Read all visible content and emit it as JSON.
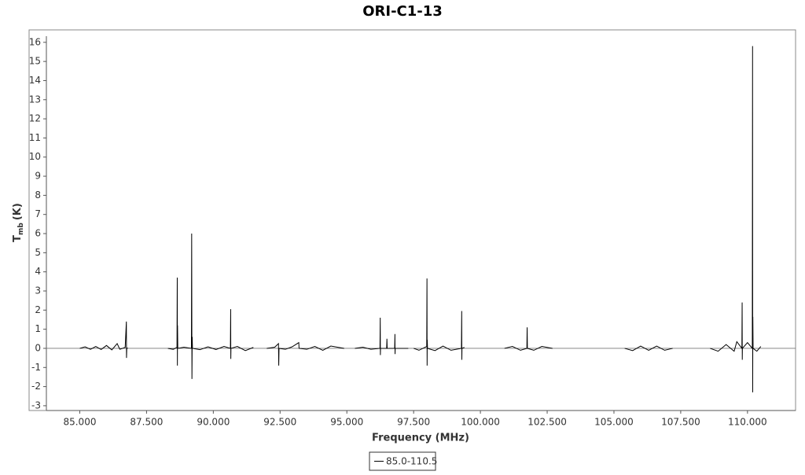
{
  "chart_data": {
    "type": "line",
    "title": "ORI-C1-13",
    "xlabel": "Frequency (MHz)",
    "ylabel": "T",
    "ylabel_sub": "mb",
    "ylabel_unit": "(K)",
    "xlim": [
      83.75,
      111.8
    ],
    "ylim": [
      -3.25,
      16.65
    ],
    "xticks": [
      {
        "value": 85,
        "label": "85.000"
      },
      {
        "value": 87.5,
        "label": "87.500"
      },
      {
        "value": 90,
        "label": "90.000"
      },
      {
        "value": 92.5,
        "label": "92.500"
      },
      {
        "value": 95,
        "label": "95.000"
      },
      {
        "value": 97.5,
        "label": "97.500"
      },
      {
        "value": 100,
        "label": "100.000"
      },
      {
        "value": 102.5,
        "label": "102.500"
      },
      {
        "value": 105,
        "label": "105.000"
      },
      {
        "value": 107.5,
        "label": "107.500"
      },
      {
        "value": 110,
        "label": "110.000"
      }
    ],
    "yticks": [
      -3,
      -2,
      -1,
      0,
      1,
      2,
      3,
      4,
      5,
      6,
      7,
      8,
      9,
      10,
      11,
      12,
      13,
      14,
      15,
      16
    ],
    "grid": false,
    "legend": "bottom",
    "x": [
      85.0,
      85.2,
      85.4,
      85.6,
      85.8,
      86.0,
      86.2,
      86.4,
      86.5,
      86.7,
      86.745,
      86.75,
      86.76,
      86.8,
      null,
      88.3,
      88.5,
      88.64,
      88.65,
      88.655,
      88.66,
      88.67,
      88.9,
      89.18,
      89.19,
      89.2,
      89.21,
      89.22,
      89.5,
      89.8,
      90.1,
      90.4,
      90.64,
      90.65,
      90.655,
      90.66,
      90.9,
      91.2,
      91.5,
      null,
      92.0,
      92.3,
      92.44,
      92.45,
      92.46,
      92.7,
      92.95,
      93.2,
      93.21,
      93.5,
      93.8,
      94.1,
      94.4,
      94.9,
      null,
      95.3,
      95.6,
      95.9,
      96.24,
      96.25,
      96.255,
      96.26,
      96.49,
      96.5,
      96.51,
      96.79,
      96.8,
      96.805,
      96.81,
      97.3,
      null,
      97.5,
      97.7,
      97.99,
      98.0,
      98.005,
      98.01,
      98.02,
      98.3,
      98.6,
      98.9,
      99.29,
      99.3,
      99.305,
      99.31,
      99.4,
      null,
      100.9,
      101.2,
      101.5,
      101.74,
      101.75,
      101.76,
      102.0,
      102.3,
      102.7,
      null,
      105.4,
      105.7,
      106.0,
      106.3,
      106.6,
      106.9,
      107.2,
      null,
      108.6,
      108.9,
      109.2,
      109.5,
      109.6,
      109.79,
      109.8,
      109.805,
      109.81,
      110.0,
      110.18,
      110.19,
      110.195,
      110.2,
      110.21,
      110.35,
      110.5
    ],
    "series": [
      {
        "name": "85.0-110.5",
        "color": "#000000",
        "values": [
          0,
          0.08,
          -0.05,
          0.1,
          -0.06,
          0.15,
          -0.08,
          0.25,
          -0.05,
          0.05,
          1.4,
          -0.5,
          0,
          0.02,
          null,
          0,
          -0.05,
          0.05,
          3.7,
          -0.9,
          1.2,
          0,
          0.06,
          0,
          6.0,
          -1.6,
          0.6,
          0,
          -0.07,
          0.08,
          -0.06,
          0.1,
          0,
          2.05,
          -0.55,
          0,
          0.1,
          -0.12,
          0.05,
          null,
          0,
          0.06,
          0.25,
          -0.9,
          0,
          -0.05,
          0.08,
          0.3,
          0,
          -0.05,
          0.1,
          -0.1,
          0.12,
          0,
          null,
          0,
          0.06,
          -0.05,
          0,
          1.6,
          -0.35,
          0,
          0,
          0.5,
          0,
          0,
          0.75,
          -0.3,
          0,
          0,
          null,
          0,
          -0.1,
          0.1,
          3.65,
          -0.9,
          0.45,
          0,
          -0.12,
          0.12,
          -0.1,
          0,
          1.95,
          -0.6,
          0,
          0.05,
          null,
          0,
          0.1,
          -0.1,
          0,
          1.1,
          0,
          -0.1,
          0.1,
          0,
          null,
          0,
          -0.12,
          0.12,
          -0.1,
          0.12,
          -0.1,
          0,
          null,
          0,
          -0.15,
          0.2,
          -0.15,
          0.35,
          0,
          2.4,
          -0.6,
          0,
          0.3,
          0,
          15.8,
          -2.3,
          1.65,
          0,
          -0.15,
          0.1
        ]
      }
    ]
  }
}
